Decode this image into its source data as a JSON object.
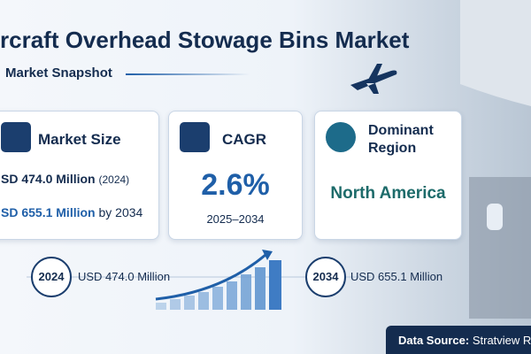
{
  "header": {
    "title": "rcraft Overhead Stowage Bins Market",
    "subtitle": "Market Snapshot"
  },
  "cards": [
    {
      "title": "Market Size",
      "line1": "SD 474.0 Million",
      "line1_note": "(2024)",
      "line2": "SD 655.1 Million",
      "line2_note": "by 2034"
    },
    {
      "title": "CAGR",
      "value": "2.6%",
      "period": "2025–2034"
    },
    {
      "title": "Dominant Region",
      "value": "North America"
    }
  ],
  "timeline": {
    "start_year": "2024",
    "start_value": "USD 474.0 Million",
    "end_year": "2034",
    "end_value": "USD 655.1 Million"
  },
  "footer": {
    "label": "Data Source:",
    "source": "Stratview Res"
  }
}
